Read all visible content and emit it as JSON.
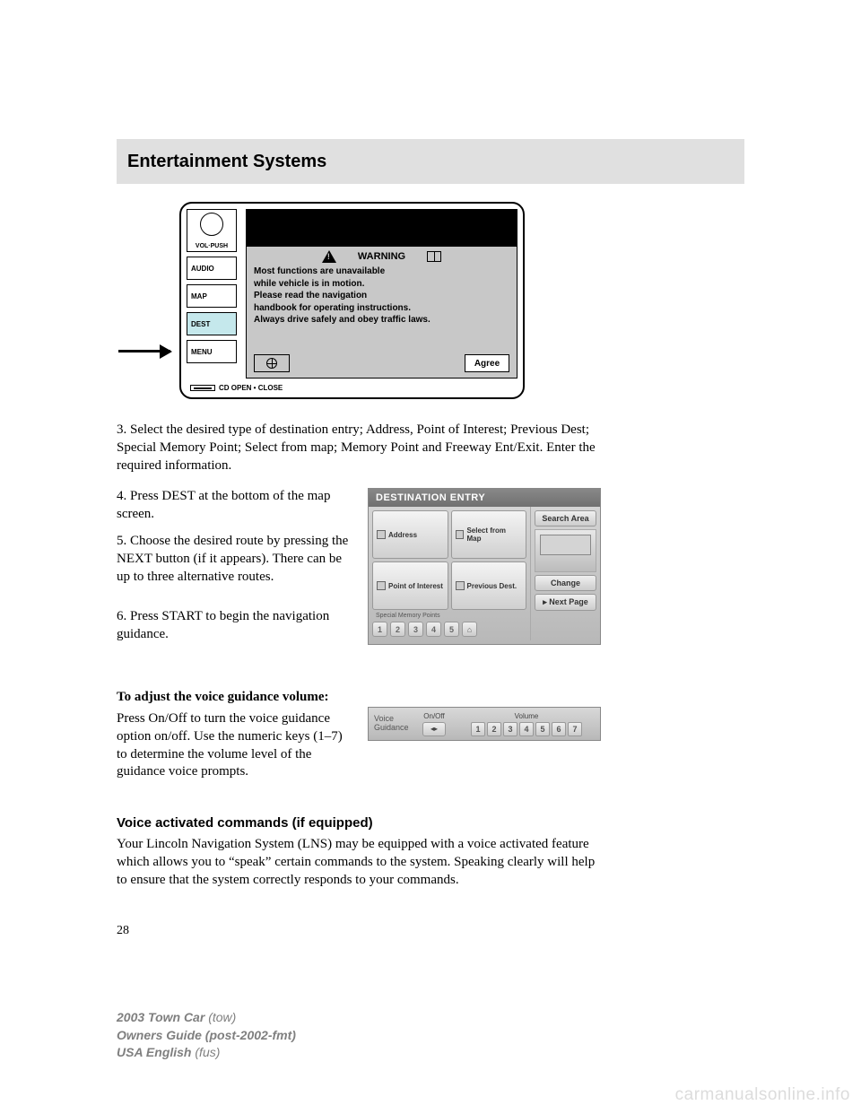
{
  "header": {
    "title": "Entertainment Systems"
  },
  "device": {
    "vol_label": "VOL·PUSH",
    "buttons": [
      "AUDIO",
      "MAP",
      "DEST",
      "MENU"
    ],
    "highlighted_index": 2,
    "warning_title": "WARNING",
    "warning_lines": [
      "Most functions are unavailable",
      "while vehicle is in motion.",
      "Please read the navigation",
      "handbook for operating instructions.",
      "Always drive safely and obey traffic laws."
    ],
    "agree_label": "Agree",
    "cd_label": "CD OPEN • CLOSE"
  },
  "paragraphs": {
    "p3": "3. Select the desired type of destination entry; Address, Point of Interest; Previous Dest; Special Memory Point; Select from map; Memory Point and Freeway Ent/Exit. Enter the required information.",
    "p4": "4. Press DEST at the bottom of the map screen.",
    "p5": "5. Choose the desired route by pressing the NEXT button (if it appears). There can be up to three alternative routes.",
    "p6": "6. Press START to begin the navigation guidance.",
    "h1": "To adjust the voice guidance volume:",
    "p7": "Press On/Off to turn the voice guidance option on/off. Use the numeric keys (1–7) to determine the volume level of the guidance voice prompts.",
    "h2": "Voice activated commands (if equipped)",
    "p8": "Your Lincoln Navigation System (LNS) may be equipped with a voice activated feature which allows you to “speak” certain commands to the system. Speaking clearly will help to ensure that the system correctly responds to your commands."
  },
  "dest_screenshot": {
    "title": "DESTINATION ENTRY",
    "buttons": {
      "address": "Address",
      "select_map": "Select from Map",
      "poi": "Point of Interest",
      "prev": "Previous Dest.",
      "mem_label": "Special Memory Points",
      "mem_nums": [
        "1",
        "2",
        "3",
        "4",
        "5"
      ],
      "home_icon": "⌂",
      "search_area": "Search Area",
      "change": "Change",
      "next_page": "▸  Next Page"
    }
  },
  "voice_screenshot": {
    "label_line1": "Voice",
    "label_line2": "Guidance",
    "onoff_title": "On/Off",
    "onoff_icon": "◂▸",
    "volume_title": "Volume",
    "nums": [
      "1",
      "2",
      "3",
      "4",
      "5",
      "6",
      "7"
    ]
  },
  "page_number": "28",
  "footer": {
    "line1a": "2003 Town Car ",
    "line1b": "(tow)",
    "line2a": "Owners Guide (post-2002-fmt)",
    "line3a": "USA English ",
    "line3b": "(fus)"
  },
  "watermark": "carmanualsonline.info",
  "colors": {
    "header_bg": "#e0e0e0",
    "highlight": "#c5e8ec",
    "screen_gray": "#c8c8c8",
    "footer_text": "#7f7f7f",
    "watermark": "#dcdcdc"
  }
}
